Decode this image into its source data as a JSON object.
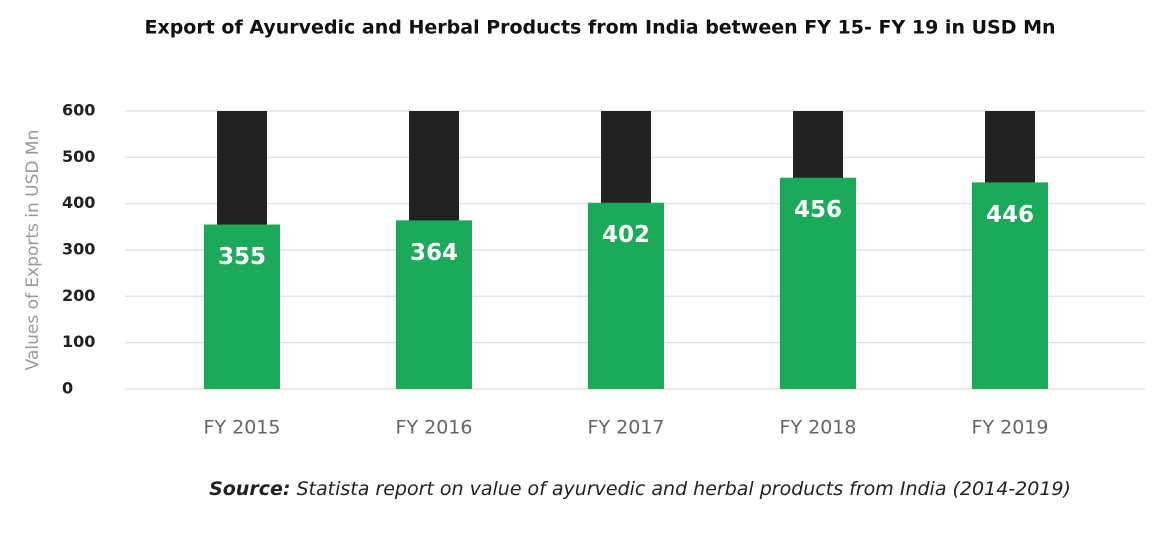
{
  "chart_data": {
    "type": "bar",
    "title": "Export of Ayurvedic and Herbal Products from India between FY 15- FY 19 in USD Mn",
    "y_label": "Values of Exports in USD Mn",
    "categories": [
      "FY 2015",
      "FY 2016",
      "FY 2017",
      "FY 2018",
      "FY 2019"
    ],
    "values": [
      355,
      364,
      402,
      456,
      446
    ],
    "color": "#1aaa5a",
    "ylim": [
      0,
      600
    ],
    "yticks": [
      0,
      100,
      200,
      300,
      400,
      500,
      600
    ],
    "grid": true,
    "source_label": "Source:",
    "source": "Statista report on value of ayurvedic and herbal products from India (2014-2019)"
  }
}
